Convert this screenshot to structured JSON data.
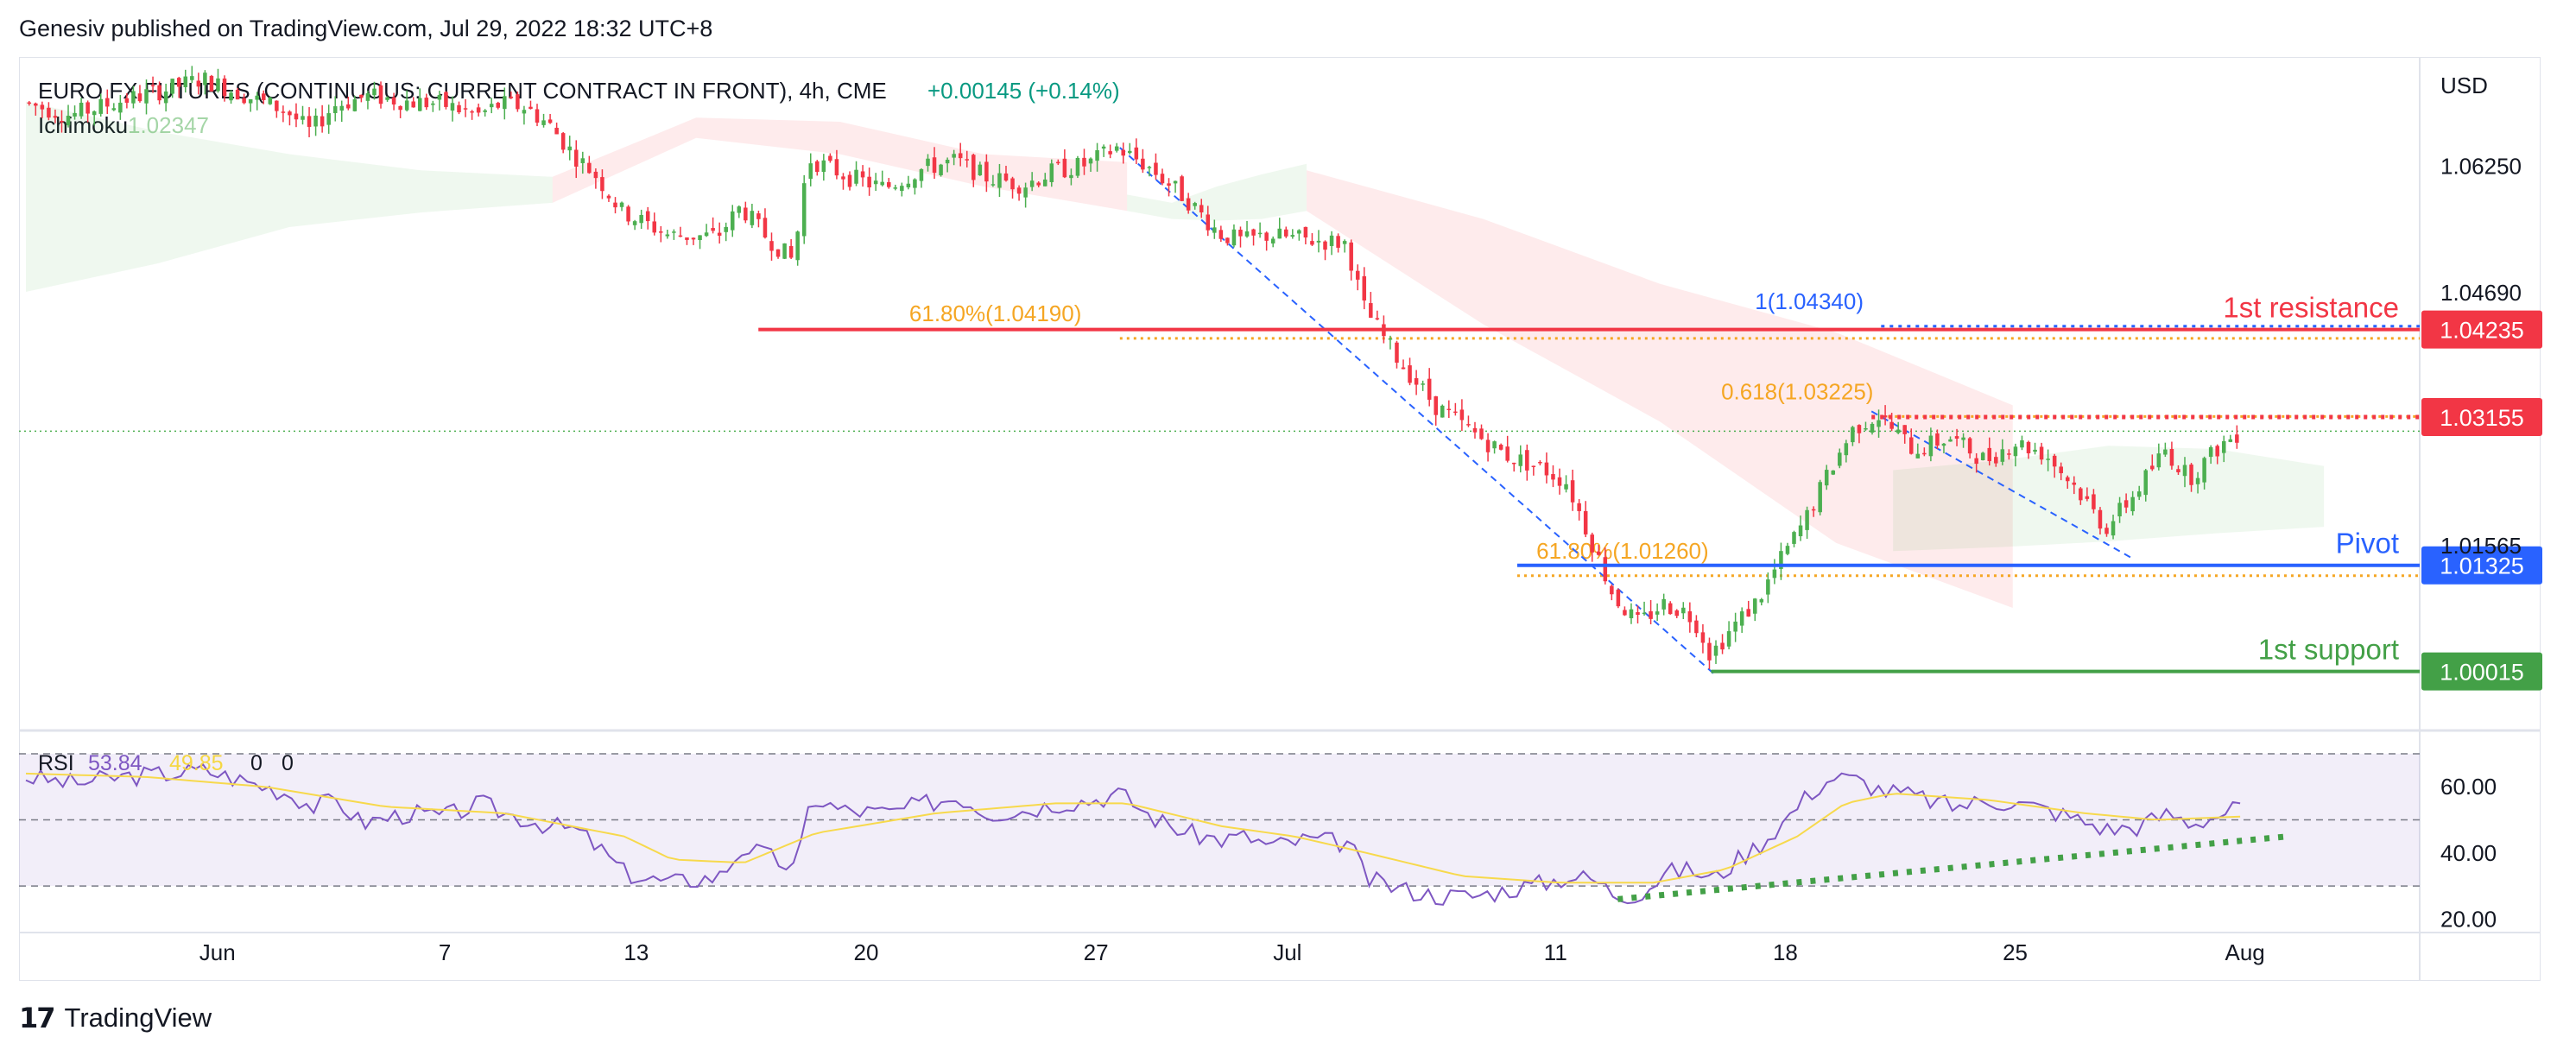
{
  "header": {
    "publisher": "Genesiv published on TradingView.com, Jul 29, 2022 18:32 UTC+8"
  },
  "footer": {
    "brand": "TradingView",
    "logo_glyph": "17"
  },
  "colors": {
    "up": "#26a69a",
    "down": "#ef5350",
    "candle_up": "#4caf50",
    "candle_down": "#f23645",
    "resistance": "#f23645",
    "pivot": "#2962ff",
    "support": "#43a047",
    "fib": "#f5a623",
    "rsi_line": "#7e57c2",
    "rsi_ma": "#f7d94c"
  },
  "chart_data": [
    {
      "type": "candlestick",
      "title": "EURO FX FUTURES (CONTINUOUS: CURRENT CONTRACT IN FRONT), 4h, CME",
      "change": "+0.00145 (+0.14%)",
      "indicator_label": "Ichimoku",
      "indicator_value": "1.02347",
      "currency": "USD",
      "ylim": [
        0.9935,
        1.0745
      ],
      "y_ticks": [
        "1.06250",
        "1.04690",
        "1.01565"
      ],
      "x_ticks": [
        {
          "label": "Jun",
          "t": 0.08
        },
        {
          "label": "7",
          "t": 0.175
        },
        {
          "label": "13",
          "t": 0.255
        },
        {
          "label": "20",
          "t": 0.351
        },
        {
          "label": "27",
          "t": 0.447
        },
        {
          "label": "Jul",
          "t": 0.527
        },
        {
          "label": "11",
          "t": 0.639
        },
        {
          "label": "18",
          "t": 0.735
        },
        {
          "label": "25",
          "t": 0.831
        },
        {
          "label": "Aug",
          "t": 0.927
        }
      ],
      "last_price_line": 1.0298,
      "levels": [
        {
          "name": "1st resistance",
          "price": 1.04235,
          "label": "1.04235",
          "color": "#f23645",
          "t_start": 0.306,
          "style": "solid"
        },
        {
          "name": "",
          "price": 1.03155,
          "label": "1.03155",
          "color": "#f23645",
          "t_start": 0.771,
          "style": "dotted"
        },
        {
          "name": "Pivot",
          "price": 1.01325,
          "label": "1.01325",
          "color": "#2962ff",
          "t_start": 0.623,
          "style": "solid"
        },
        {
          "name": "1st support",
          "price": 1.00015,
          "label": "1.00015",
          "color": "#43a047",
          "t_start": 0.704,
          "style": "solid"
        }
      ],
      "fib_labels": [
        {
          "text": "61.80%(1.04190)",
          "price": 1.0419,
          "t": 0.405,
          "color": "#f5a623"
        },
        {
          "text": "1(1.04340)",
          "price": 1.0434,
          "t": 0.745,
          "color": "#2962ff"
        },
        {
          "text": "0.618(1.03225)",
          "price": 1.03225,
          "t": 0.74,
          "color": "#f5a623"
        },
        {
          "text": "61.80%(1.01260)",
          "price": 1.0126,
          "t": 0.667,
          "color": "#f5a623"
        }
      ],
      "fib_lines": [
        {
          "price": 1.0419,
          "t0": 0.457,
          "t1": 1.0,
          "color": "#f5a623"
        },
        {
          "price": 1.0434,
          "t0": 0.775,
          "t1": 1.0,
          "color": "#2962ff"
        },
        {
          "price": 1.03225,
          "t0": 0.775,
          "t1": 1.0,
          "color": "#f5a623"
        },
        {
          "price": 1.0126,
          "t0": 0.623,
          "t1": 1.0,
          "color": "#f5a623"
        }
      ],
      "trend_lines": [
        {
          "t0": 0.457,
          "p0": 1.0648,
          "t1": 0.705,
          "p1": 0.9999
        },
        {
          "t0": 0.771,
          "p0": 1.03225,
          "t1": 0.88,
          "p1": 1.0141
        }
      ],
      "price_path": [
        [
          0.0,
          1.0704
        ],
        [
          0.02,
          1.0688
        ],
        [
          0.04,
          1.0705
        ],
        [
          0.06,
          1.072
        ],
        [
          0.075,
          1.0733
        ],
        [
          0.09,
          1.0716
        ],
        [
          0.1,
          1.0704
        ],
        [
          0.11,
          1.0694
        ],
        [
          0.12,
          1.0668
        ],
        [
          0.13,
          1.07
        ],
        [
          0.145,
          1.0712
        ],
        [
          0.16,
          1.0705
        ],
        [
          0.175,
          1.0702
        ],
        [
          0.19,
          1.0688
        ],
        [
          0.2,
          1.0702
        ],
        [
          0.21,
          1.0698
        ],
        [
          0.22,
          1.0676
        ],
        [
          0.23,
          1.064
        ],
        [
          0.24,
          1.0612
        ],
        [
          0.25,
          1.057
        ],
        [
          0.27,
          1.054
        ],
        [
          0.29,
          1.0538
        ],
        [
          0.3,
          1.0575
        ],
        [
          0.31,
          1.054
        ],
        [
          0.322,
          1.0508
        ],
        [
          0.328,
          1.0635
        ],
        [
          0.345,
          1.0612
        ],
        [
          0.36,
          1.0598
        ],
        [
          0.376,
          1.0622
        ],
        [
          0.39,
          1.0632
        ],
        [
          0.402,
          1.0612
        ],
        [
          0.418,
          1.0602
        ],
        [
          0.43,
          1.0618
        ],
        [
          0.445,
          1.0628
        ],
        [
          0.457,
          1.0648
        ],
        [
          0.47,
          1.0625
        ],
        [
          0.485,
          1.0588
        ],
        [
          0.5,
          1.0542
        ],
        [
          0.51,
          1.0532
        ],
        [
          0.52,
          1.054
        ],
        [
          0.535,
          1.0535
        ],
        [
          0.553,
          1.053
        ],
        [
          0.56,
          1.0452
        ],
        [
          0.575,
          1.0385
        ],
        [
          0.59,
          1.033
        ],
        [
          0.605,
          1.0298
        ],
        [
          0.62,
          1.0268
        ],
        [
          0.635,
          1.0252
        ],
        [
          0.645,
          1.0235
        ],
        [
          0.655,
          1.0165
        ],
        [
          0.665,
          1.0092
        ],
        [
          0.675,
          1.006
        ],
        [
          0.685,
          1.0085
        ],
        [
          0.695,
          1.0075
        ],
        [
          0.7,
          1.0058
        ],
        [
          0.705,
          1.0022
        ],
        [
          0.715,
          1.0058
        ],
        [
          0.725,
          1.009
        ],
        [
          0.735,
          1.0142
        ],
        [
          0.745,
          1.019
        ],
        [
          0.755,
          1.025
        ],
        [
          0.765,
          1.0302
        ],
        [
          0.775,
          1.0318
        ],
        [
          0.79,
          1.0275
        ],
        [
          0.805,
          1.029
        ],
        [
          0.82,
          1.0262
        ],
        [
          0.832,
          1.0285
        ],
        [
          0.845,
          1.027
        ],
        [
          0.858,
          1.0228
        ],
        [
          0.87,
          1.0178
        ],
        [
          0.882,
          1.022
        ],
        [
          0.895,
          1.0275
        ],
        [
          0.905,
          1.024
        ],
        [
          0.918,
          1.028
        ],
        [
          0.925,
          1.0295
        ]
      ],
      "cloud": [
        {
          "t0": 0.0,
          "t1": 0.22,
          "top": [
            1.0705,
            1.0668,
            1.064,
            1.062,
            1.0612
          ],
          "bot": [
            1.047,
            1.0505,
            1.055,
            1.0568,
            1.058
          ],
          "color": "green"
        },
        {
          "t0": 0.22,
          "t1": 0.46,
          "top": [
            1.0612,
            1.0685,
            1.068,
            1.064,
            1.063
          ],
          "bot": [
            1.058,
            1.066,
            1.064,
            1.06,
            1.057
          ],
          "color": "red"
        },
        {
          "t0": 0.46,
          "t1": 0.535,
          "top": [
            1.059,
            1.058,
            1.06,
            1.0615,
            1.0628
          ],
          "bot": [
            1.057,
            1.056,
            1.0558,
            1.056,
            1.057
          ],
          "color": "green"
        },
        {
          "t0": 0.535,
          "t1": 0.83,
          "top": [
            1.062,
            1.056,
            1.048,
            1.042,
            1.033
          ],
          "bot": [
            1.057,
            1.043,
            1.031,
            1.016,
            1.008
          ],
          "color": "red"
        },
        {
          "t0": 0.78,
          "t1": 0.96,
          "top": [
            1.025,
            1.0262,
            1.028,
            1.0276,
            1.0255
          ],
          "bot": [
            1.015,
            1.0155,
            1.0162,
            1.0172,
            1.018
          ],
          "color": "green"
        }
      ]
    },
    {
      "type": "line",
      "title": "RSI",
      "values_label": [
        "53.84",
        "49.85",
        "0",
        "0"
      ],
      "ylim": [
        18,
        76
      ],
      "y_ticks": [
        "60.00",
        "40.00",
        "20.00"
      ],
      "bands": [
        70,
        50,
        30
      ],
      "rsi_path": [
        [
          0.0,
          63
        ],
        [
          0.02,
          61
        ],
        [
          0.04,
          63
        ],
        [
          0.06,
          64
        ],
        [
          0.075,
          65
        ],
        [
          0.09,
          62
        ],
        [
          0.11,
          58
        ],
        [
          0.12,
          54
        ],
        [
          0.13,
          56
        ],
        [
          0.14,
          49
        ],
        [
          0.16,
          52
        ],
        [
          0.175,
          51
        ],
        [
          0.19,
          55
        ],
        [
          0.2,
          52
        ],
        [
          0.21,
          50
        ],
        [
          0.22,
          48
        ],
        [
          0.23,
          47
        ],
        [
          0.24,
          41
        ],
        [
          0.25,
          34
        ],
        [
          0.26,
          32
        ],
        [
          0.27,
          31
        ],
        [
          0.29,
          33
        ],
        [
          0.3,
          42
        ],
        [
          0.31,
          39
        ],
        [
          0.322,
          35
        ],
        [
          0.328,
          57
        ],
        [
          0.34,
          53
        ],
        [
          0.36,
          52
        ],
        [
          0.376,
          55
        ],
        [
          0.39,
          57
        ],
        [
          0.402,
          52
        ],
        [
          0.418,
          53
        ],
        [
          0.43,
          55
        ],
        [
          0.445,
          56
        ],
        [
          0.457,
          58
        ],
        [
          0.47,
          51
        ],
        [
          0.485,
          46
        ],
        [
          0.5,
          44
        ],
        [
          0.51,
          45
        ],
        [
          0.52,
          42
        ],
        [
          0.535,
          44
        ],
        [
          0.553,
          43
        ],
        [
          0.56,
          32
        ],
        [
          0.575,
          29
        ],
        [
          0.59,
          27
        ],
        [
          0.605,
          27
        ],
        [
          0.62,
          29
        ],
        [
          0.635,
          31
        ],
        [
          0.645,
          33
        ],
        [
          0.655,
          32
        ],
        [
          0.665,
          27
        ],
        [
          0.675,
          28
        ],
        [
          0.685,
          34
        ],
        [
          0.695,
          35
        ],
        [
          0.705,
          32
        ],
        [
          0.715,
          38
        ],
        [
          0.725,
          43
        ],
        [
          0.735,
          50
        ],
        [
          0.745,
          58
        ],
        [
          0.755,
          63
        ],
        [
          0.765,
          62
        ],
        [
          0.775,
          59
        ],
        [
          0.79,
          57
        ],
        [
          0.805,
          54
        ],
        [
          0.82,
          56
        ],
        [
          0.832,
          55
        ],
        [
          0.845,
          53
        ],
        [
          0.858,
          50
        ],
        [
          0.87,
          47
        ],
        [
          0.882,
          48
        ],
        [
          0.895,
          52
        ],
        [
          0.905,
          49
        ],
        [
          0.918,
          52
        ],
        [
          0.925,
          54
        ]
      ],
      "ma_path": [
        [
          0.0,
          64
        ],
        [
          0.05,
          63
        ],
        [
          0.1,
          60
        ],
        [
          0.15,
          54
        ],
        [
          0.2,
          52
        ],
        [
          0.25,
          45
        ],
        [
          0.27,
          38
        ],
        [
          0.3,
          37
        ],
        [
          0.33,
          46
        ],
        [
          0.38,
          52
        ],
        [
          0.43,
          55
        ],
        [
          0.46,
          55
        ],
        [
          0.5,
          48
        ],
        [
          0.53,
          45
        ],
        [
          0.56,
          40
        ],
        [
          0.6,
          33
        ],
        [
          0.64,
          31
        ],
        [
          0.68,
          31
        ],
        [
          0.71,
          35
        ],
        [
          0.74,
          45
        ],
        [
          0.76,
          55
        ],
        [
          0.78,
          58
        ],
        [
          0.82,
          56
        ],
        [
          0.86,
          52
        ],
        [
          0.89,
          50
        ],
        [
          0.925,
          51
        ]
      ],
      "trend": {
        "t0": 0.665,
        "v0": 26,
        "t1": 0.945,
        "v1": 45
      }
    }
  ]
}
